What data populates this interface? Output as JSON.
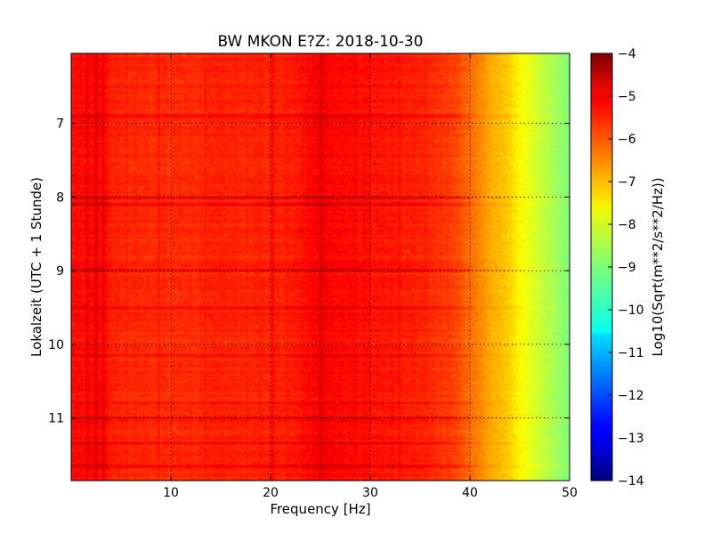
{
  "chart_data": {
    "type": "heatmap",
    "title": "BW MKON E?Z: 2018-10-30",
    "xlabel": "Frequency [Hz]",
    "ylabel": "Lokalzeit (UTC + 1 Stunde)",
    "xlim": [
      0,
      50
    ],
    "ylim": [
      11.85,
      6.05
    ],
    "x_ticks": [
      10,
      20,
      30,
      40,
      50
    ],
    "x_tick_labels": [
      "10",
      "20",
      "30",
      "40",
      "50"
    ],
    "y_ticks": [
      7,
      8,
      9,
      10,
      11
    ],
    "y_tick_labels": [
      "7",
      "8",
      "9",
      "10",
      "11"
    ],
    "grid": true,
    "colorbar": {
      "label": "Log10(Sqrt(m**2/s**2/Hz))",
      "range": [
        -14,
        -4
      ],
      "ticks": [
        -4,
        -5,
        -6,
        -7,
        -8,
        -9,
        -10,
        -11,
        -12,
        -13,
        -14
      ],
      "tick_labels": [
        "−4",
        "−5",
        "−6",
        "−7",
        "−8",
        "−9",
        "−10",
        "−11",
        "−12",
        "−13",
        "−14"
      ],
      "colormap": "jet"
    },
    "spectrum_profile": {
      "frequency_hz": [
        0,
        2,
        5,
        10,
        15,
        20,
        22,
        25,
        30,
        35,
        38,
        40,
        42,
        44,
        45,
        46,
        48,
        50
      ],
      "value": [
        -5.4,
        -5.3,
        -5.6,
        -5.7,
        -5.6,
        -5.6,
        -5.5,
        -5.2,
        -5.4,
        -5.6,
        -5.8,
        -6.3,
        -6.9,
        -7.3,
        -7.7,
        -8.0,
        -8.5,
        -9.0
      ]
    },
    "strong_time_bands": [
      6.9,
      8.0,
      8.1,
      9.0,
      9.5,
      10.15,
      10.8,
      11.0,
      11.35,
      11.65
    ],
    "strong_frequency_lines_hz": [
      1.5,
      2.5,
      3.2,
      8.8,
      13.5,
      20.2,
      25.0,
      33.0
    ]
  }
}
